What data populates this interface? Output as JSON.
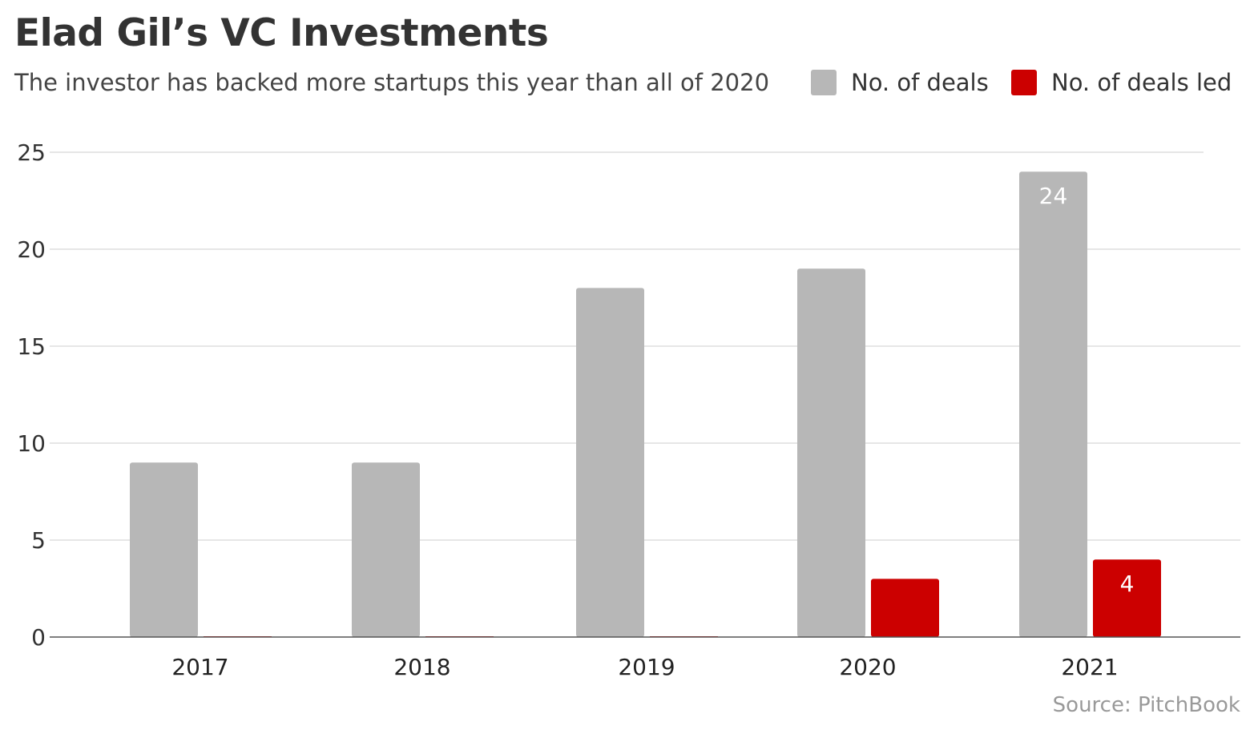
{
  "chart_data": {
    "type": "bar",
    "title": "Elad Gil’s VC Investments",
    "subtitle": "The investor has backed more startups this year than all of 2020",
    "categories": [
      "2017",
      "2018",
      "2019",
      "2020",
      "2021"
    ],
    "series": [
      {
        "name": "No. of deals",
        "color": "#b7b7b7",
        "values": [
          9,
          9,
          18,
          19,
          24
        ],
        "labels": [
          null,
          null,
          null,
          null,
          "24"
        ]
      },
      {
        "name": "No. of deals led",
        "color": "#cc0000",
        "values": [
          0,
          0,
          0,
          3,
          4
        ],
        "labels": [
          null,
          null,
          null,
          null,
          "4"
        ]
      }
    ],
    "yticks": [
      0,
      5,
      10,
      15,
      20,
      25
    ],
    "ylim": [
      0,
      25
    ],
    "xlabel": "",
    "ylabel": "",
    "grid": true,
    "legend": "top-right",
    "source": "Source: PitchBook"
  }
}
